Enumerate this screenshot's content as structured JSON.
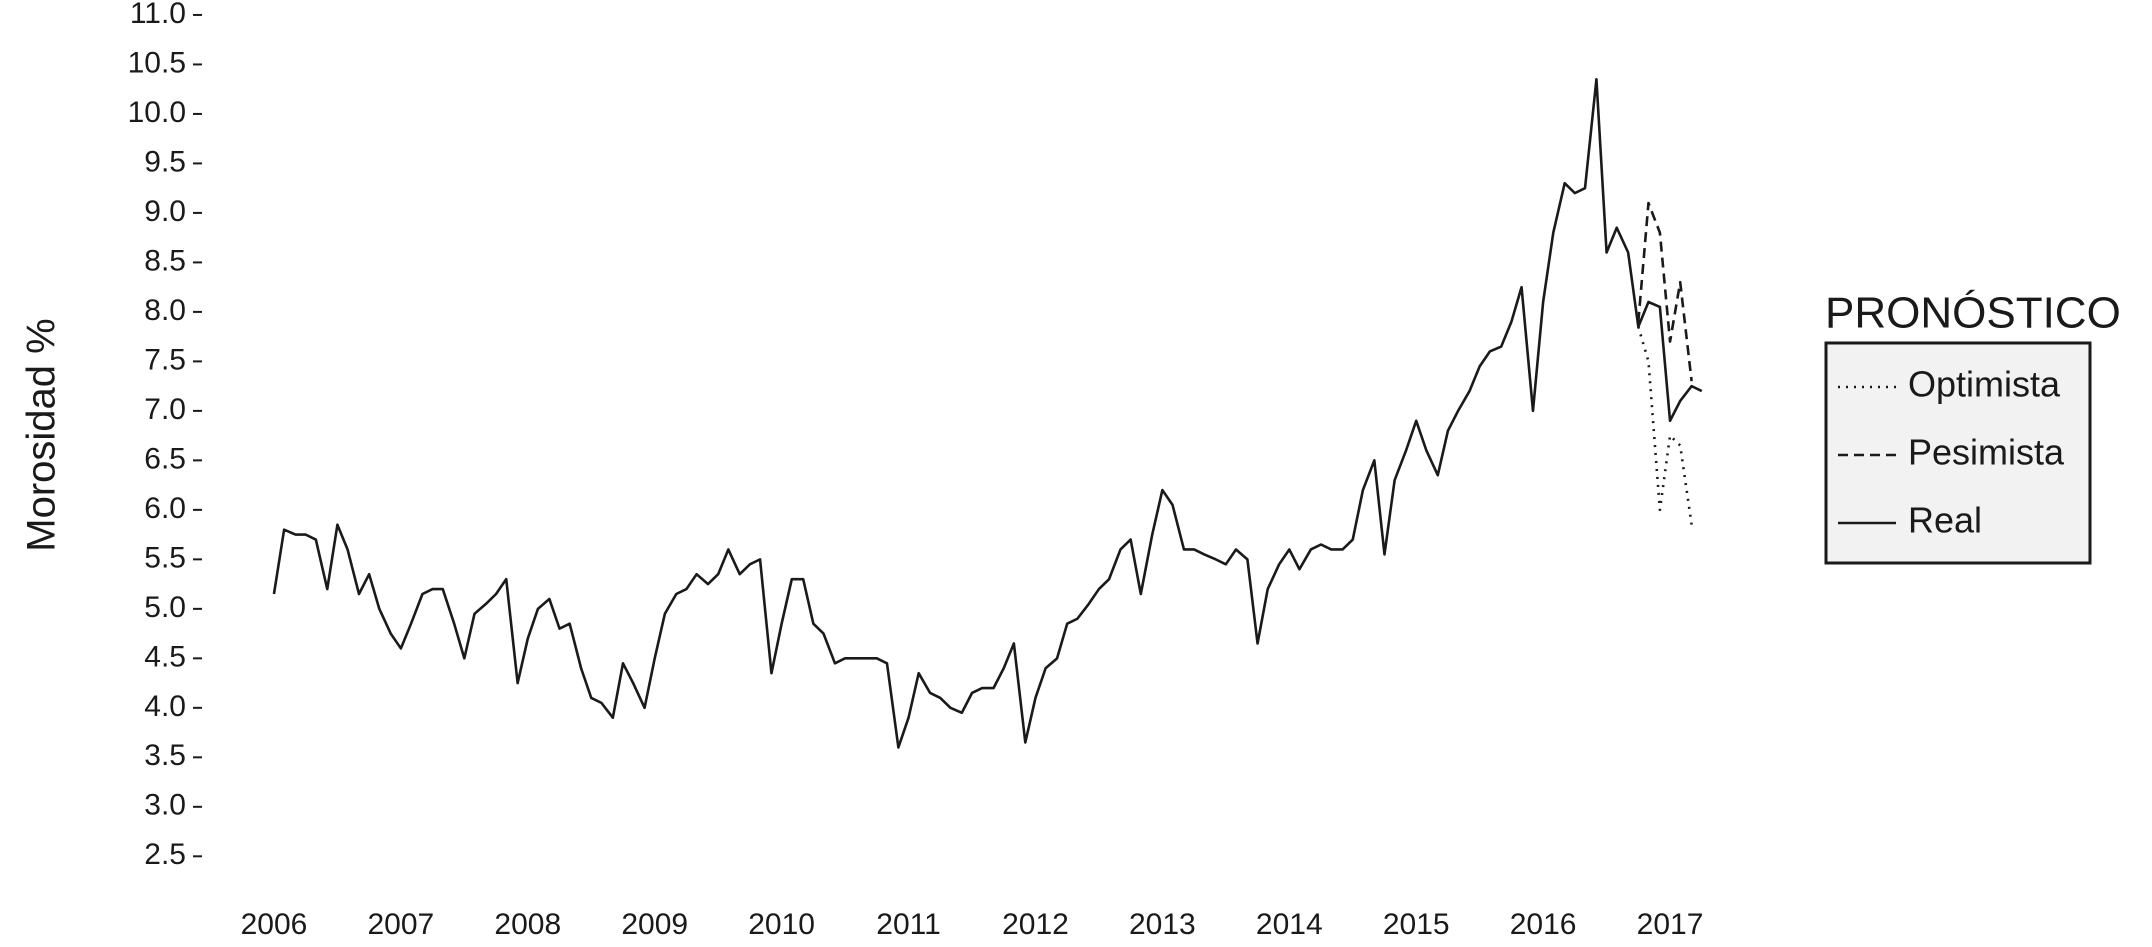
{
  "chart_data": {
    "type": "line",
    "ylabel": "Morosidad %",
    "legend_title": "PRONÓSTICO",
    "legend": "right",
    "xlim": [
      2005.5,
      2017.5
    ],
    "xticks": [
      2006,
      2007,
      2008,
      2009,
      2010,
      2011,
      2012,
      2013,
      2014,
      2015,
      2016,
      2017
    ],
    "ylim": [
      2.2,
      11.05
    ],
    "yticks": [
      2.5,
      {
        "value": 3,
        "label": "3.0"
      },
      3.5,
      {
        "value": 4,
        "label": "4.0"
      },
      4.5,
      {
        "value": 5,
        "label": "5.0"
      },
      5.5,
      {
        "value": 6,
        "label": "6.0"
      },
      6.5,
      {
        "value": 7,
        "label": "7.0"
      },
      7.5,
      {
        "value": 8,
        "label": "8.0"
      },
      8.5,
      {
        "value": 9,
        "label": "9.0"
      },
      9.5,
      {
        "value": 10,
        "label": "10.0"
      },
      10.5,
      {
        "value": 11,
        "label": "11.0"
      }
    ],
    "series": [
      {
        "name": "Optimista",
        "color": "#1a1a1a",
        "linestyle": "dotted",
        "x": [
          2016.75,
          2016.83,
          2016.92,
          2017.0,
          2017.08,
          2017.17
        ],
        "values": [
          7.85,
          7.5,
          6.0,
          6.75,
          6.65,
          5.85
        ]
      },
      {
        "name": "Pesimista",
        "color": "#1a1a1a",
        "linestyle": "dashed",
        "x": [
          2016.75,
          2016.83,
          2016.92,
          2017.0,
          2017.08,
          2017.17
        ],
        "values": [
          7.9,
          9.1,
          8.8,
          7.7,
          8.3,
          7.3
        ]
      },
      {
        "name": "Real",
        "color": "#1a1a1a",
        "linestyle": "solid",
        "x": [
          2006.0,
          2006.08,
          2006.17,
          2006.25,
          2006.33,
          2006.42,
          2006.5,
          2006.58,
          2006.67,
          2006.75,
          2006.83,
          2006.92,
          2007.0,
          2007.08,
          2007.17,
          2007.25,
          2007.33,
          2007.42,
          2007.5,
          2007.58,
          2007.67,
          2007.75,
          2007.83,
          2007.92,
          2008.0,
          2008.08,
          2008.17,
          2008.25,
          2008.33,
          2008.42,
          2008.5,
          2008.58,
          2008.67,
          2008.75,
          2008.83,
          2008.92,
          2009.0,
          2009.08,
          2009.17,
          2009.25,
          2009.33,
          2009.42,
          2009.5,
          2009.58,
          2009.67,
          2009.75,
          2009.83,
          2009.92,
          2010.0,
          2010.08,
          2010.17,
          2010.25,
          2010.33,
          2010.42,
          2010.5,
          2010.58,
          2010.67,
          2010.75,
          2010.83,
          2010.92,
          2011.0,
          2011.08,
          2011.17,
          2011.25,
          2011.33,
          2011.42,
          2011.5,
          2011.58,
          2011.67,
          2011.75,
          2011.83,
          2011.92,
          2012.0,
          2012.08,
          2012.17,
          2012.25,
          2012.33,
          2012.42,
          2012.5,
          2012.58,
          2012.67,
          2012.75,
          2012.83,
          2012.92,
          2013.0,
          2013.08,
          2013.17,
          2013.25,
          2013.33,
          2013.42,
          2013.5,
          2013.58,
          2013.67,
          2013.75,
          2013.83,
          2013.92,
          2014.0,
          2014.08,
          2014.17,
          2014.25,
          2014.33,
          2014.42,
          2014.5,
          2014.58,
          2014.67,
          2014.75,
          2014.83,
          2014.92,
          2015.0,
          2015.08,
          2015.17,
          2015.25,
          2015.33,
          2015.42,
          2015.5,
          2015.58,
          2015.67,
          2015.75,
          2015.83,
          2015.92,
          2016.0,
          2016.08,
          2016.17,
          2016.25,
          2016.33,
          2016.42,
          2016.5,
          2016.58,
          2016.67,
          2016.75,
          2016.83,
          2016.92,
          2017.0,
          2017.08,
          2017.17,
          2017.25
        ],
        "values": [
          5.15,
          5.8,
          5.75,
          5.75,
          5.7,
          5.2,
          5.85,
          5.6,
          5.15,
          5.35,
          5.0,
          4.75,
          4.6,
          4.85,
          5.15,
          5.2,
          5.2,
          4.85,
          4.5,
          4.95,
          5.05,
          5.15,
          5.3,
          4.25,
          4.7,
          5.0,
          5.1,
          4.8,
          4.85,
          4.4,
          4.1,
          4.05,
          3.9,
          4.45,
          4.25,
          4.0,
          4.5,
          4.95,
          5.15,
          5.2,
          5.35,
          5.25,
          5.35,
          5.6,
          5.35,
          5.45,
          5.5,
          4.35,
          4.85,
          5.3,
          5.3,
          4.85,
          4.75,
          4.45,
          4.5,
          4.5,
          4.5,
          4.5,
          4.45,
          3.6,
          3.9,
          4.35,
          4.15,
          4.1,
          4.0,
          3.95,
          4.15,
          4.2,
          4.2,
          4.4,
          4.65,
          3.65,
          4.1,
          4.4,
          4.5,
          4.85,
          4.9,
          5.05,
          5.2,
          5.3,
          5.6,
          5.7,
          5.15,
          5.75,
          6.2,
          6.05,
          5.6,
          5.6,
          5.55,
          5.5,
          5.45,
          5.6,
          5.5,
          4.65,
          5.2,
          5.45,
          5.6,
          5.4,
          5.6,
          5.65,
          5.6,
          5.6,
          5.7,
          6.2,
          6.5,
          5.55,
          6.3,
          6.6,
          6.9,
          6.6,
          6.35,
          6.8,
          7.0,
          7.2,
          7.45,
          7.6,
          7.65,
          7.9,
          8.25,
          7.0,
          8.1,
          8.8,
          9.3,
          9.2,
          9.25,
          10.35,
          8.6,
          8.85,
          8.6,
          7.85,
          8.1,
          8.05,
          6.9,
          7.1,
          7.25,
          7.2
        ]
      }
    ]
  }
}
